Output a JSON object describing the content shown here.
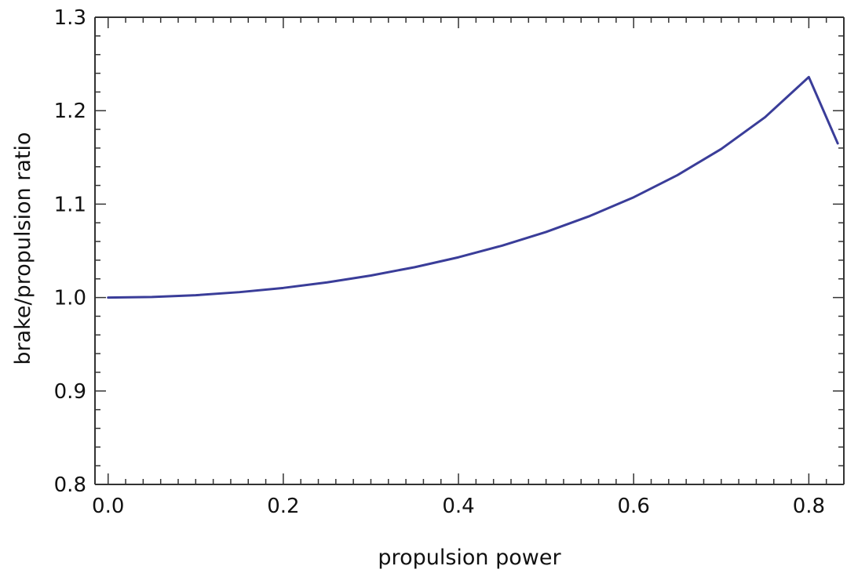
{
  "chart_data": {
    "type": "line",
    "title": "",
    "xlabel": "propulsion power",
    "ylabel": "brake/propulsion ratio",
    "xlim": [
      -0.015,
      0.84
    ],
    "ylim": [
      0.8,
      1.3
    ],
    "x_ticks": [
      {
        "value": 0.0,
        "label": "0.0"
      },
      {
        "value": 0.2,
        "label": "0.2"
      },
      {
        "value": 0.4,
        "label": "0.4"
      },
      {
        "value": 0.6,
        "label": "0.6"
      },
      {
        "value": 0.8,
        "label": "0.8"
      }
    ],
    "y_ticks": [
      {
        "value": 0.8,
        "label": "0.8"
      },
      {
        "value": 0.9,
        "label": "0.9"
      },
      {
        "value": 1.0,
        "label": "1.0"
      },
      {
        "value": 1.1,
        "label": "1.1"
      },
      {
        "value": 1.2,
        "label": "1.2"
      },
      {
        "value": 1.3,
        "label": "1.3"
      }
    ],
    "grid": false,
    "line_color": "#3a3d99",
    "series": [
      {
        "x": [
          0.0,
          0.05,
          0.1,
          0.15,
          0.2,
          0.25,
          0.3,
          0.35,
          0.4,
          0.45,
          0.5,
          0.55,
          0.6,
          0.65,
          0.7,
          0.75,
          0.8,
          0.833
        ],
        "values": [
          1.0,
          1.0006,
          1.0025,
          1.0058,
          1.0103,
          1.0162,
          1.0236,
          1.0325,
          1.0431,
          1.0556,
          1.0702,
          1.0873,
          1.1073,
          1.131,
          1.159,
          1.193,
          1.236,
          1.165
        ]
      }
    ]
  }
}
